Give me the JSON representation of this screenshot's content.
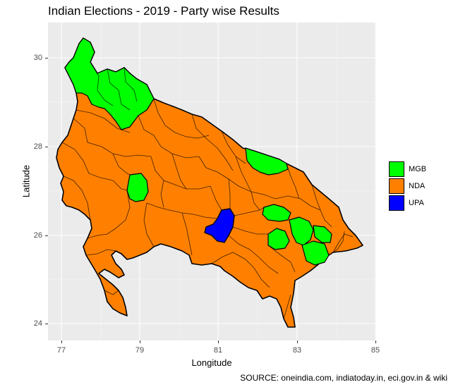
{
  "title": "Indian Elections - 2019 - Party wise Results",
  "caption": "SOURCE: oneindia.com, indiatoday.in, eci.gov.in & wiki",
  "axes": {
    "xlabel": "Longitude",
    "ylabel": "Latitude",
    "xticks": [
      "77",
      "79",
      "81",
      "83",
      "85"
    ],
    "yticks": [
      "24",
      "26",
      "28",
      "30"
    ],
    "xlim": [
      76.85,
      85.05
    ],
    "ylim": [
      23.6,
      30.75
    ]
  },
  "legend": {
    "placement": "right",
    "items": [
      {
        "label": "MGB",
        "color": "#00ff00"
      },
      {
        "label": "NDA",
        "color": "#ff8000"
      },
      {
        "label": "UPA",
        "color": "#0000ff"
      }
    ]
  },
  "colors": {
    "panel_background": "#ebebeb",
    "grid": "#ffffff",
    "boundary": "#000000"
  }
}
